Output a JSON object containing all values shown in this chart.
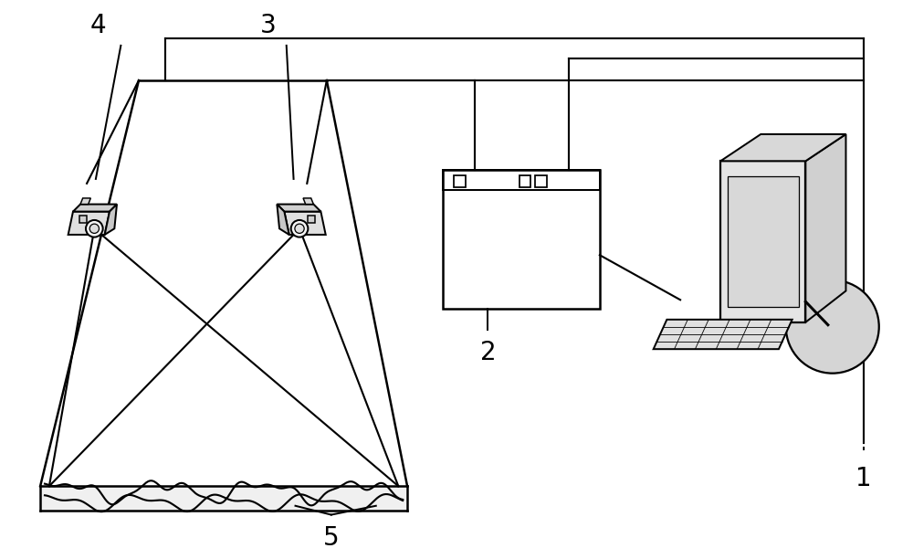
{
  "bg_color": "#ffffff",
  "line_color": "#000000",
  "gray_fill": "#e8e8e8",
  "dark_gray": "#b0b0b0",
  "label_1": "1",
  "label_2": "2",
  "label_3": "3",
  "label_4": "4",
  "label_5": "5",
  "label_fontsize": 20,
  "figsize": [
    10.0,
    6.12
  ]
}
